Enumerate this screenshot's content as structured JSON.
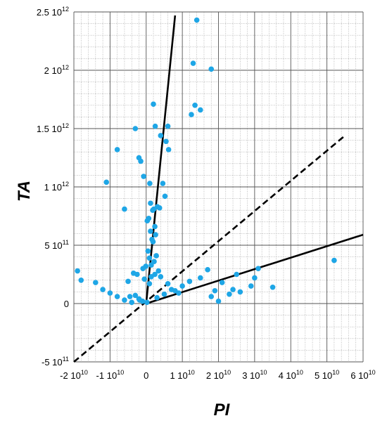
{
  "chart_data": {
    "type": "scatter",
    "title": "",
    "xlabel": "PI",
    "ylabel": "TA",
    "xlim": [
      -20000000000.0,
      60000000000.0
    ],
    "ylim": [
      -500000000000.0,
      2500000000000.0
    ],
    "grid": true,
    "grid_minor": true,
    "colors": {
      "points": "#1ea6e6",
      "lines": "#000000",
      "grid_major": "#555555",
      "grid_minor": "#9a9a9a"
    },
    "x_ticks": [
      {
        "value": -20000000000.0,
        "base": "-2 10",
        "exp": "10"
      },
      {
        "value": -10000000000.0,
        "base": "-1 10",
        "exp": "10"
      },
      {
        "value": 0,
        "base": "0",
        "exp": ""
      },
      {
        "value": 10000000000.0,
        "base": "1 10",
        "exp": "10"
      },
      {
        "value": 20000000000.0,
        "base": "2 10",
        "exp": "10"
      },
      {
        "value": 30000000000.0,
        "base": "3 10",
        "exp": "10"
      },
      {
        "value": 40000000000.0,
        "base": "4 10",
        "exp": "10"
      },
      {
        "value": 50000000000.0,
        "base": "5 10",
        "exp": "10"
      },
      {
        "value": 60000000000.0,
        "base": "6 10",
        "exp": "10"
      }
    ],
    "y_ticks": [
      {
        "value": 2500000000000.0,
        "base": "2.5 10",
        "exp": "12"
      },
      {
        "value": 2000000000000.0,
        "base": "2 10",
        "exp": "12"
      },
      {
        "value": 1500000000000.0,
        "base": "1.5 10",
        "exp": "12"
      },
      {
        "value": 1000000000000.0,
        "base": "1 10",
        "exp": "12"
      },
      {
        "value": 500000000000.0,
        "base": "5 10",
        "exp": "11"
      },
      {
        "value": 0,
        "base": "0",
        "exp": ""
      },
      {
        "value": -500000000000.0,
        "base": "-5 10",
        "exp": "11"
      }
    ],
    "lines": [
      {
        "style": "solid",
        "x": [
          0,
          8000000000.0
        ],
        "y": [
          0,
          2470000000000.0
        ]
      },
      {
        "style": "dashed",
        "x": [
          -20000000000.0,
          55000000000.0
        ],
        "y": [
          -500000000000.0,
          1440000000000.0
        ]
      },
      {
        "style": "solid",
        "x": [
          0,
          60000000000.0
        ],
        "y": [
          0,
          590000000000.0
        ]
      }
    ],
    "series": [
      {
        "x": [
          14000000000.0,
          18000000000.0,
          13000000000.0,
          2000000000.0,
          2500000000.0,
          6000000000.0,
          -8000000000.0,
          -1500000000.0,
          15000000000.0,
          12500000000.0,
          13500000000.0,
          -3000000000.0,
          4000000000.0,
          5500000000.0,
          -2000000000.0,
          -700000000.0,
          1000000000.0,
          1200000000.0,
          1800000000.0,
          2100000000.0,
          3100000000.0,
          3700000000.0,
          6200000000.0,
          4600000000.0,
          5200000000.0,
          -6000000000.0,
          -11000000000.0,
          300000000.0,
          700000000.0,
          1200000000.0,
          1600000000.0,
          1900000000.0,
          2600000000.0,
          2400000000.0,
          500000000.0,
          900000000.0,
          1400000000.0,
          2200000000.0,
          2800000000.0,
          -100000000.0,
          -900000000.0,
          -2500000000.0,
          -5000000000.0,
          52000000000.0,
          30000000000.0,
          35000000000.0,
          21000000000.0,
          25000000000.0,
          29000000000.0,
          23000000000.0,
          31000000000.0,
          19000000000.0,
          26000000000.0,
          17000000000.0,
          24000000000.0,
          20000000000.0,
          -19000000000.0,
          -18000000000.0,
          -14000000000.0,
          -12000000000.0,
          -10000000000.0,
          -8000000000.0,
          -6000000000.0,
          -4000000000.0,
          -3000000000.0,
          -2000000000.0,
          -1000000000.0,
          3000000000.0,
          5000000000.0,
          8000000000.0,
          10000000000.0,
          12000000000.0,
          15000000000.0,
          18000000000.0,
          2400000000.0,
          3400000000.0,
          4000000000.0,
          7000000000.0,
          9000000000.0,
          6000000000.0,
          -3500000000.0,
          -4500000000.0,
          -1800000000.0,
          1400000000.0,
          900000000.0,
          -500000000.0,
          200000000.0
        ],
        "y": [
          2430000000000.0,
          2010000000000.0,
          2060000000000.0,
          1710000000000.0,
          1520000000000.0,
          1520000000000.0,
          1320000000000.0,
          1220000000000.0,
          1660000000000.0,
          1620000000000.0,
          1700000000000.0,
          1500000000000.0,
          1440000000000.0,
          1390000000000.0,
          1250000000000.0,
          1090000000000.0,
          1030000000000.0,
          860000000000.0,
          800000000000.0,
          810000000000.0,
          830000000000.0,
          820000000000.0,
          1320000000000.0,
          1030000000000.0,
          920000000000.0,
          810000000000.0,
          1040000000000.0,
          710000000000.0,
          730000000000.0,
          620000000000.0,
          550000000000.0,
          530000000000.0,
          590000000000.0,
          660000000000.0,
          450000000000.0,
          390000000000.0,
          330000000000.0,
          360000000000.0,
          410000000000.0,
          320000000000.0,
          300000000000.0,
          250000000000.0,
          190000000000.0,
          370000000000.0,
          220000000000.0,
          140000000000.0,
          180000000000.0,
          250000000000.0,
          150000000000.0,
          80000000000.0,
          300000000000.0,
          110000000000.0,
          100000000000.0,
          290000000000.0,
          120000000000.0,
          20000000000.0,
          280000000000.0,
          200000000000.0,
          180000000000.0,
          120000000000.0,
          90000000000.0,
          60000000000.0,
          30000000000.0,
          10000000000.0,
          70000000000.0,
          40000000000.0,
          20000000000.0,
          50000000000.0,
          80000000000.0,
          110000000000.0,
          150000000000.0,
          190000000000.0,
          220000000000.0,
          60000000000.0,
          250000000000.0,
          280000000000.0,
          230000000000.0,
          120000000000.0,
          90000000000.0,
          170000000000.0,
          260000000000.0,
          60000000000.0,
          30000000000.0,
          230000000000.0,
          170000000000.0,
          210000000000.0,
          10000000000.0
        ]
      }
    ]
  }
}
